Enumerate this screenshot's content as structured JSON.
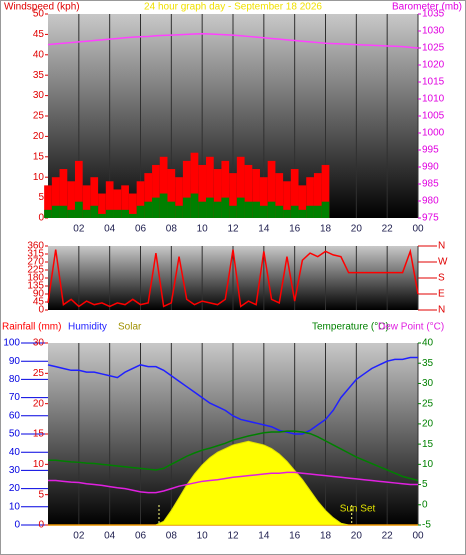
{
  "chart_data": [
    {
      "type": "line",
      "title": "24 hour graph day - September 18 2026",
      "ylabel": "Windspeed (kph)",
      "y2label": "Barometer (mb)",
      "ycolor": "#e00000",
      "y2color": "#e000e0",
      "title_color": "#f0e000",
      "xlim": [
        0,
        24
      ],
      "xticks": [
        {
          "value": 2,
          "label": "02"
        },
        {
          "value": 4,
          "label": "04"
        },
        {
          "value": 6,
          "label": "06"
        },
        {
          "value": 8,
          "label": "08"
        },
        10,
        12,
        14,
        16,
        18,
        20,
        22,
        {
          "value": 24,
          "label": "00"
        }
      ],
      "ylim": [
        0,
        50
      ],
      "yticks": [
        0,
        5,
        10,
        15,
        20,
        25,
        30,
        35,
        40,
        45,
        50
      ],
      "y2lim": [
        975,
        1035
      ],
      "y2ticks": [
        975,
        980,
        985,
        990,
        995,
        1000,
        1005,
        1010,
        1015,
        1020,
        1025,
        1030,
        1035
      ],
      "x": [
        0,
        0.5,
        1,
        1.5,
        2,
        2.5,
        3,
        3.5,
        4,
        4.5,
        5,
        5.5,
        6,
        6.5,
        7,
        7.5,
        8,
        8.5,
        9,
        9.5,
        10,
        10.5,
        11,
        11.5,
        12,
        12.5,
        13,
        13.5,
        14,
        14.5,
        15,
        15.5,
        16,
        16.5,
        17,
        17.5,
        18,
        18.5,
        19,
        19.5,
        20,
        20.5,
        21,
        21.5,
        22,
        22.5,
        23,
        23.5,
        24
      ],
      "series": [
        {
          "kind": "bar",
          "color": "#ff0000",
          "values": [
            8,
            10,
            12,
            9,
            14,
            8,
            10,
            6,
            9,
            7,
            8,
            6,
            9,
            11,
            13,
            15,
            12,
            10,
            14,
            16,
            13,
            15,
            12,
            14,
            11,
            15,
            13,
            12,
            10,
            14,
            11,
            9,
            12,
            8,
            10,
            11,
            13,
            0,
            0,
            0,
            0,
            0,
            0,
            0,
            0,
            0,
            0,
            0,
            0
          ]
        },
        {
          "kind": "bar",
          "color": "#008000",
          "values": [
            2,
            3,
            3,
            2,
            4,
            2,
            3,
            1,
            2,
            2,
            2,
            1,
            3,
            4,
            5,
            6,
            4,
            3,
            5,
            6,
            4,
            5,
            4,
            5,
            3,
            5,
            4,
            4,
            3,
            4,
            3,
            2,
            3,
            2,
            3,
            3,
            4,
            0,
            0,
            0,
            0,
            0,
            0,
            0,
            0,
            0,
            0,
            0,
            0
          ]
        },
        {
          "kind": "line",
          "axis": "y2",
          "color": "#ff40ff",
          "values": [
            1026.0,
            1026.2,
            1026.4,
            1026.6,
            1026.8,
            1027.0,
            1027.2,
            1027.4,
            1027.6,
            1027.8,
            1028.0,
            1028.2,
            1028.3,
            1028.4,
            1028.6,
            1028.7,
            1028.8,
            1028.9,
            1029.0,
            1029.1,
            1029.2,
            1029.1,
            1029.0,
            1028.9,
            1028.8,
            1028.6,
            1028.4,
            1028.2,
            1028.0,
            1027.8,
            1027.6,
            1027.4,
            1027.2,
            1027.0,
            1026.8,
            1026.6,
            1026.4,
            1026.3,
            1026.2,
            1026.1,
            1026.0,
            1025.9,
            1025.8,
            1025.7,
            1025.6,
            1025.5,
            1025.4,
            1025.2,
            1025.0
          ]
        }
      ]
    },
    {
      "type": "line",
      "ycolor": "#e00000",
      "y2color": "#e00000",
      "xlim": [
        0,
        24
      ],
      "xticks": [
        2,
        4,
        6,
        8,
        10,
        12,
        14,
        16,
        18,
        20,
        22,
        24
      ],
      "ylim": [
        0,
        360
      ],
      "yticks": [
        0,
        45,
        90,
        135,
        180,
        225,
        270,
        315,
        360
      ],
      "y2lim": [
        0,
        360
      ],
      "y2ticks": [
        {
          "value": 360,
          "label": "N"
        },
        {
          "value": 270,
          "label": "W"
        },
        {
          "value": 180,
          "label": "S"
        },
        {
          "value": 90,
          "label": "E"
        },
        {
          "value": 0,
          "label": "N"
        }
      ],
      "x": [
        0,
        0.5,
        1,
        1.5,
        2,
        2.5,
        3,
        3.5,
        4,
        4.5,
        5,
        5.5,
        6,
        6.5,
        7,
        7.5,
        8,
        8.5,
        9,
        9.5,
        10,
        10.5,
        11,
        11.5,
        12,
        12.5,
        13,
        13.5,
        14,
        14.5,
        15,
        15.5,
        16,
        16.5,
        17,
        17.5,
        18,
        18.5,
        19,
        19.5,
        20,
        20.5,
        21,
        21.5,
        22,
        22.5,
        23,
        23.5,
        24
      ],
      "series": [
        {
          "kind": "line",
          "color": "#ff0000",
          "values": [
            40,
            340,
            30,
            60,
            20,
            50,
            30,
            40,
            20,
            40,
            30,
            60,
            30,
            40,
            320,
            20,
            40,
            300,
            60,
            30,
            50,
            40,
            30,
            60,
            340,
            20,
            50,
            30,
            330,
            60,
            40,
            300,
            50,
            280,
            320,
            300,
            330,
            310,
            300,
            210,
            210,
            210,
            210,
            210,
            210,
            210,
            210,
            330,
            90
          ]
        }
      ]
    },
    {
      "type": "line",
      "ycolor": "#0000e0",
      "y3color": "#e00000",
      "y2color": "#008000",
      "xlim": [
        0,
        24
      ],
      "xticks": [
        {
          "value": 2,
          "label": "02"
        },
        {
          "value": 4,
          "label": "04"
        },
        {
          "value": 6,
          "label": "06"
        },
        {
          "value": 8,
          "label": "08"
        },
        10,
        12,
        14,
        16,
        18,
        20,
        22,
        {
          "value": 24,
          "label": "00"
        }
      ],
      "ylim": [
        0,
        100
      ],
      "yticks": [
        0,
        10,
        20,
        30,
        40,
        50,
        60,
        70,
        80,
        90,
        100
      ],
      "y3lim": [
        0,
        30
      ],
      "y3ticks": [
        0,
        5,
        10,
        15,
        20,
        25,
        30
      ],
      "y2lim": [
        -5,
        40
      ],
      "y2ticks": [
        -5,
        0,
        5,
        10,
        15,
        20,
        25,
        30,
        35,
        40
      ],
      "markers": [
        {
          "x": 7.2
        },
        {
          "x": 19.7,
          "label": "Sun Set"
        }
      ],
      "x": [
        0,
        0.5,
        1,
        1.5,
        2,
        2.5,
        3,
        3.5,
        4,
        4.5,
        5,
        5.5,
        6,
        6.5,
        7,
        7.5,
        8,
        8.5,
        9,
        9.5,
        10,
        10.5,
        11,
        11.5,
        12,
        12.5,
        13,
        13.5,
        14,
        14.5,
        15,
        15.5,
        16,
        16.5,
        17,
        17.5,
        18,
        18.5,
        19,
        19.5,
        20,
        20.5,
        21,
        21.5,
        22,
        22.5,
        23,
        23.5,
        24
      ],
      "series": [
        {
          "name": "Rainfall (mm)",
          "kind": "line",
          "axis": "y3",
          "color": "#ff0000",
          "values": [
            0,
            0,
            0,
            0,
            0,
            0,
            0,
            0,
            0,
            0,
            0,
            0,
            0,
            0,
            0,
            0,
            0,
            0,
            0,
            0,
            0,
            0,
            0,
            0,
            0,
            0,
            0,
            0,
            0,
            0,
            0,
            0,
            0,
            0,
            0,
            0,
            0,
            0,
            0,
            0,
            0,
            0,
            0,
            0,
            0,
            0,
            0,
            0,
            0
          ]
        },
        {
          "name": "Solar",
          "kind": "area",
          "color": "#ffff00",
          "label_color": "#a09000",
          "values": [
            0,
            0,
            0,
            0,
            0,
            0,
            0,
            0,
            0,
            0,
            0,
            0,
            0,
            0,
            0,
            2,
            8,
            15,
            22,
            28,
            33,
            37,
            40,
            42,
            44,
            45,
            46,
            45,
            44,
            42,
            39,
            35,
            30,
            25,
            19,
            13,
            8,
            4,
            1,
            0,
            0,
            0,
            0,
            0,
            0,
            0,
            0,
            0,
            0
          ]
        },
        {
          "name": "Humidity",
          "kind": "line",
          "color": "#2020ff",
          "values": [
            88,
            87,
            86,
            85,
            85,
            84,
            84,
            83,
            82,
            81,
            84,
            86,
            88,
            87,
            87,
            85,
            82,
            79,
            76,
            73,
            70,
            67,
            65,
            63,
            60,
            58,
            57,
            56,
            55,
            54,
            52,
            51,
            50,
            50,
            52,
            55,
            58,
            63,
            70,
            75,
            80,
            83,
            86,
            88,
            90,
            91,
            91,
            92,
            92
          ]
        },
        {
          "name": "Temperature (°C)",
          "kind": "line",
          "axis": "y2",
          "color": "#008000",
          "values": [
            11,
            11,
            10.8,
            10.6,
            10.5,
            10.3,
            10.2,
            10,
            9.8,
            9.6,
            9.4,
            9.2,
            9,
            8.8,
            8.6,
            9,
            10,
            11,
            12,
            12.8,
            13.5,
            14,
            14.6,
            15.2,
            16,
            16.5,
            17,
            17.4,
            17.8,
            18,
            18,
            18.2,
            18.2,
            18,
            17.6,
            16.8,
            15.8,
            14.8,
            13.8,
            12.8,
            11.8,
            11,
            10.2,
            9.4,
            8.6,
            7.8,
            7,
            6.5,
            6
          ]
        },
        {
          "name": "Dew Point (°C)",
          "kind": "line",
          "axis": "y2",
          "color": "#e020e0",
          "values": [
            6,
            6,
            5.8,
            5.6,
            5.5,
            5.2,
            5,
            4.8,
            4.5,
            4.2,
            4,
            3.6,
            3.2,
            3,
            3,
            3.4,
            4,
            4.6,
            5,
            5.4,
            5.8,
            6,
            6.2,
            6.5,
            6.8,
            7,
            7.2,
            7.4,
            7.6,
            7.8,
            7.8,
            8,
            8,
            7.8,
            7.6,
            7.4,
            7.2,
            7,
            6.8,
            6.6,
            6.4,
            6.2,
            6,
            5.8,
            5.6,
            5.4,
            5.2,
            5,
            5
          ]
        }
      ]
    }
  ]
}
